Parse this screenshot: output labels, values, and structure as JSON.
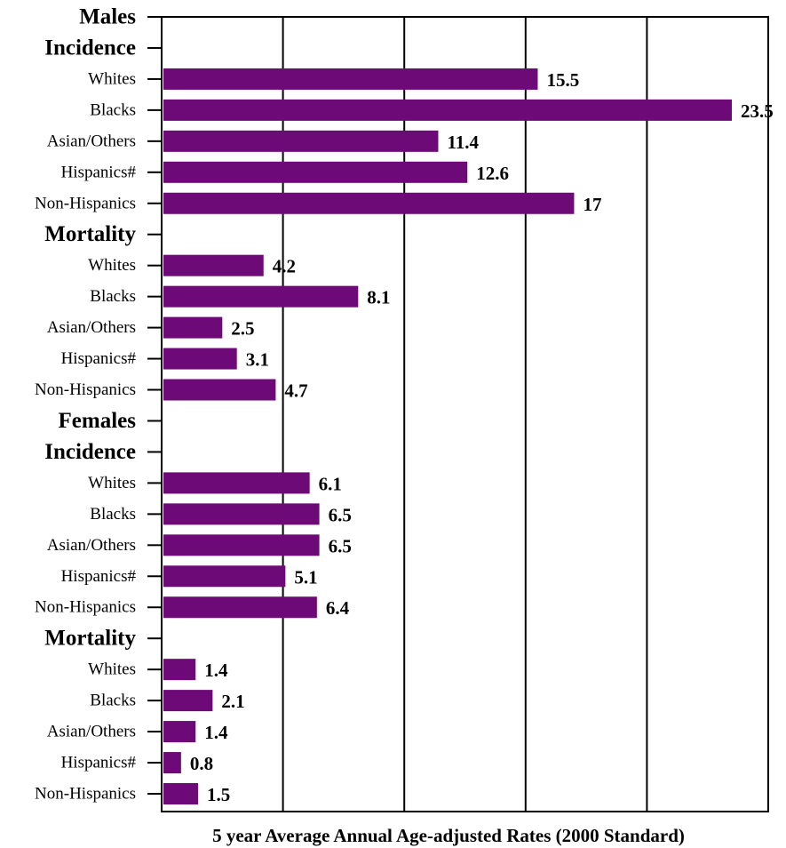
{
  "chart_data": {
    "type": "bar",
    "orientation": "horizontal",
    "xlabel": "5 year Average Annual Age-adjusted Rates (2000 Standard)",
    "ylabel": "",
    "xlim": [
      0,
      25
    ],
    "grid": true,
    "bar_color": "#6e0a78",
    "rows": [
      {
        "kind": "header",
        "label": "Males"
      },
      {
        "kind": "header",
        "label": "Incidence"
      },
      {
        "kind": "bar",
        "label": "Whites",
        "value": 15.5,
        "value_label": "15.5"
      },
      {
        "kind": "bar",
        "label": "Blacks",
        "value": 23.5,
        "value_label": "23.5"
      },
      {
        "kind": "bar",
        "label": "Asian/Others",
        "value": 11.4,
        "value_label": "11.4"
      },
      {
        "kind": "bar",
        "label": "Hispanics#",
        "value": 12.6,
        "value_label": "12.6"
      },
      {
        "kind": "bar",
        "label": "Non-Hispanics",
        "value": 17,
        "value_label": "17"
      },
      {
        "kind": "header",
        "label": "Mortality"
      },
      {
        "kind": "bar",
        "label": "Whites",
        "value": 4.2,
        "value_label": "4.2"
      },
      {
        "kind": "bar",
        "label": "Blacks",
        "value": 8.1,
        "value_label": "8.1"
      },
      {
        "kind": "bar",
        "label": "Asian/Others",
        "value": 2.5,
        "value_label": "2.5"
      },
      {
        "kind": "bar",
        "label": "Hispanics#",
        "value": 3.1,
        "value_label": "3.1"
      },
      {
        "kind": "bar",
        "label": "Non-Hispanics",
        "value": 4.7,
        "value_label": "4.7"
      },
      {
        "kind": "header",
        "label": "Females"
      },
      {
        "kind": "header",
        "label": "Incidence"
      },
      {
        "kind": "bar",
        "label": "Whites",
        "value": 6.1,
        "value_label": "6.1"
      },
      {
        "kind": "bar",
        "label": "Blacks",
        "value": 6.5,
        "value_label": "6.5"
      },
      {
        "kind": "bar",
        "label": "Asian/Others",
        "value": 6.5,
        "value_label": "6.5"
      },
      {
        "kind": "bar",
        "label": "Hispanics#",
        "value": 5.1,
        "value_label": "5.1"
      },
      {
        "kind": "bar",
        "label": "Non-Hispanics",
        "value": 6.4,
        "value_label": "6.4"
      },
      {
        "kind": "header",
        "label": "Mortality"
      },
      {
        "kind": "bar",
        "label": "Whites",
        "value": 1.4,
        "value_label": "1.4"
      },
      {
        "kind": "bar",
        "label": "Blacks",
        "value": 2.1,
        "value_label": "2.1"
      },
      {
        "kind": "bar",
        "label": "Asian/Others",
        "value": 1.4,
        "value_label": "1.4"
      },
      {
        "kind": "bar",
        "label": "Hispanics#",
        "value": 0.8,
        "value_label": "0.8"
      },
      {
        "kind": "bar",
        "label": "Non-Hispanics",
        "value": 1.5,
        "value_label": "1.5"
      }
    ]
  }
}
